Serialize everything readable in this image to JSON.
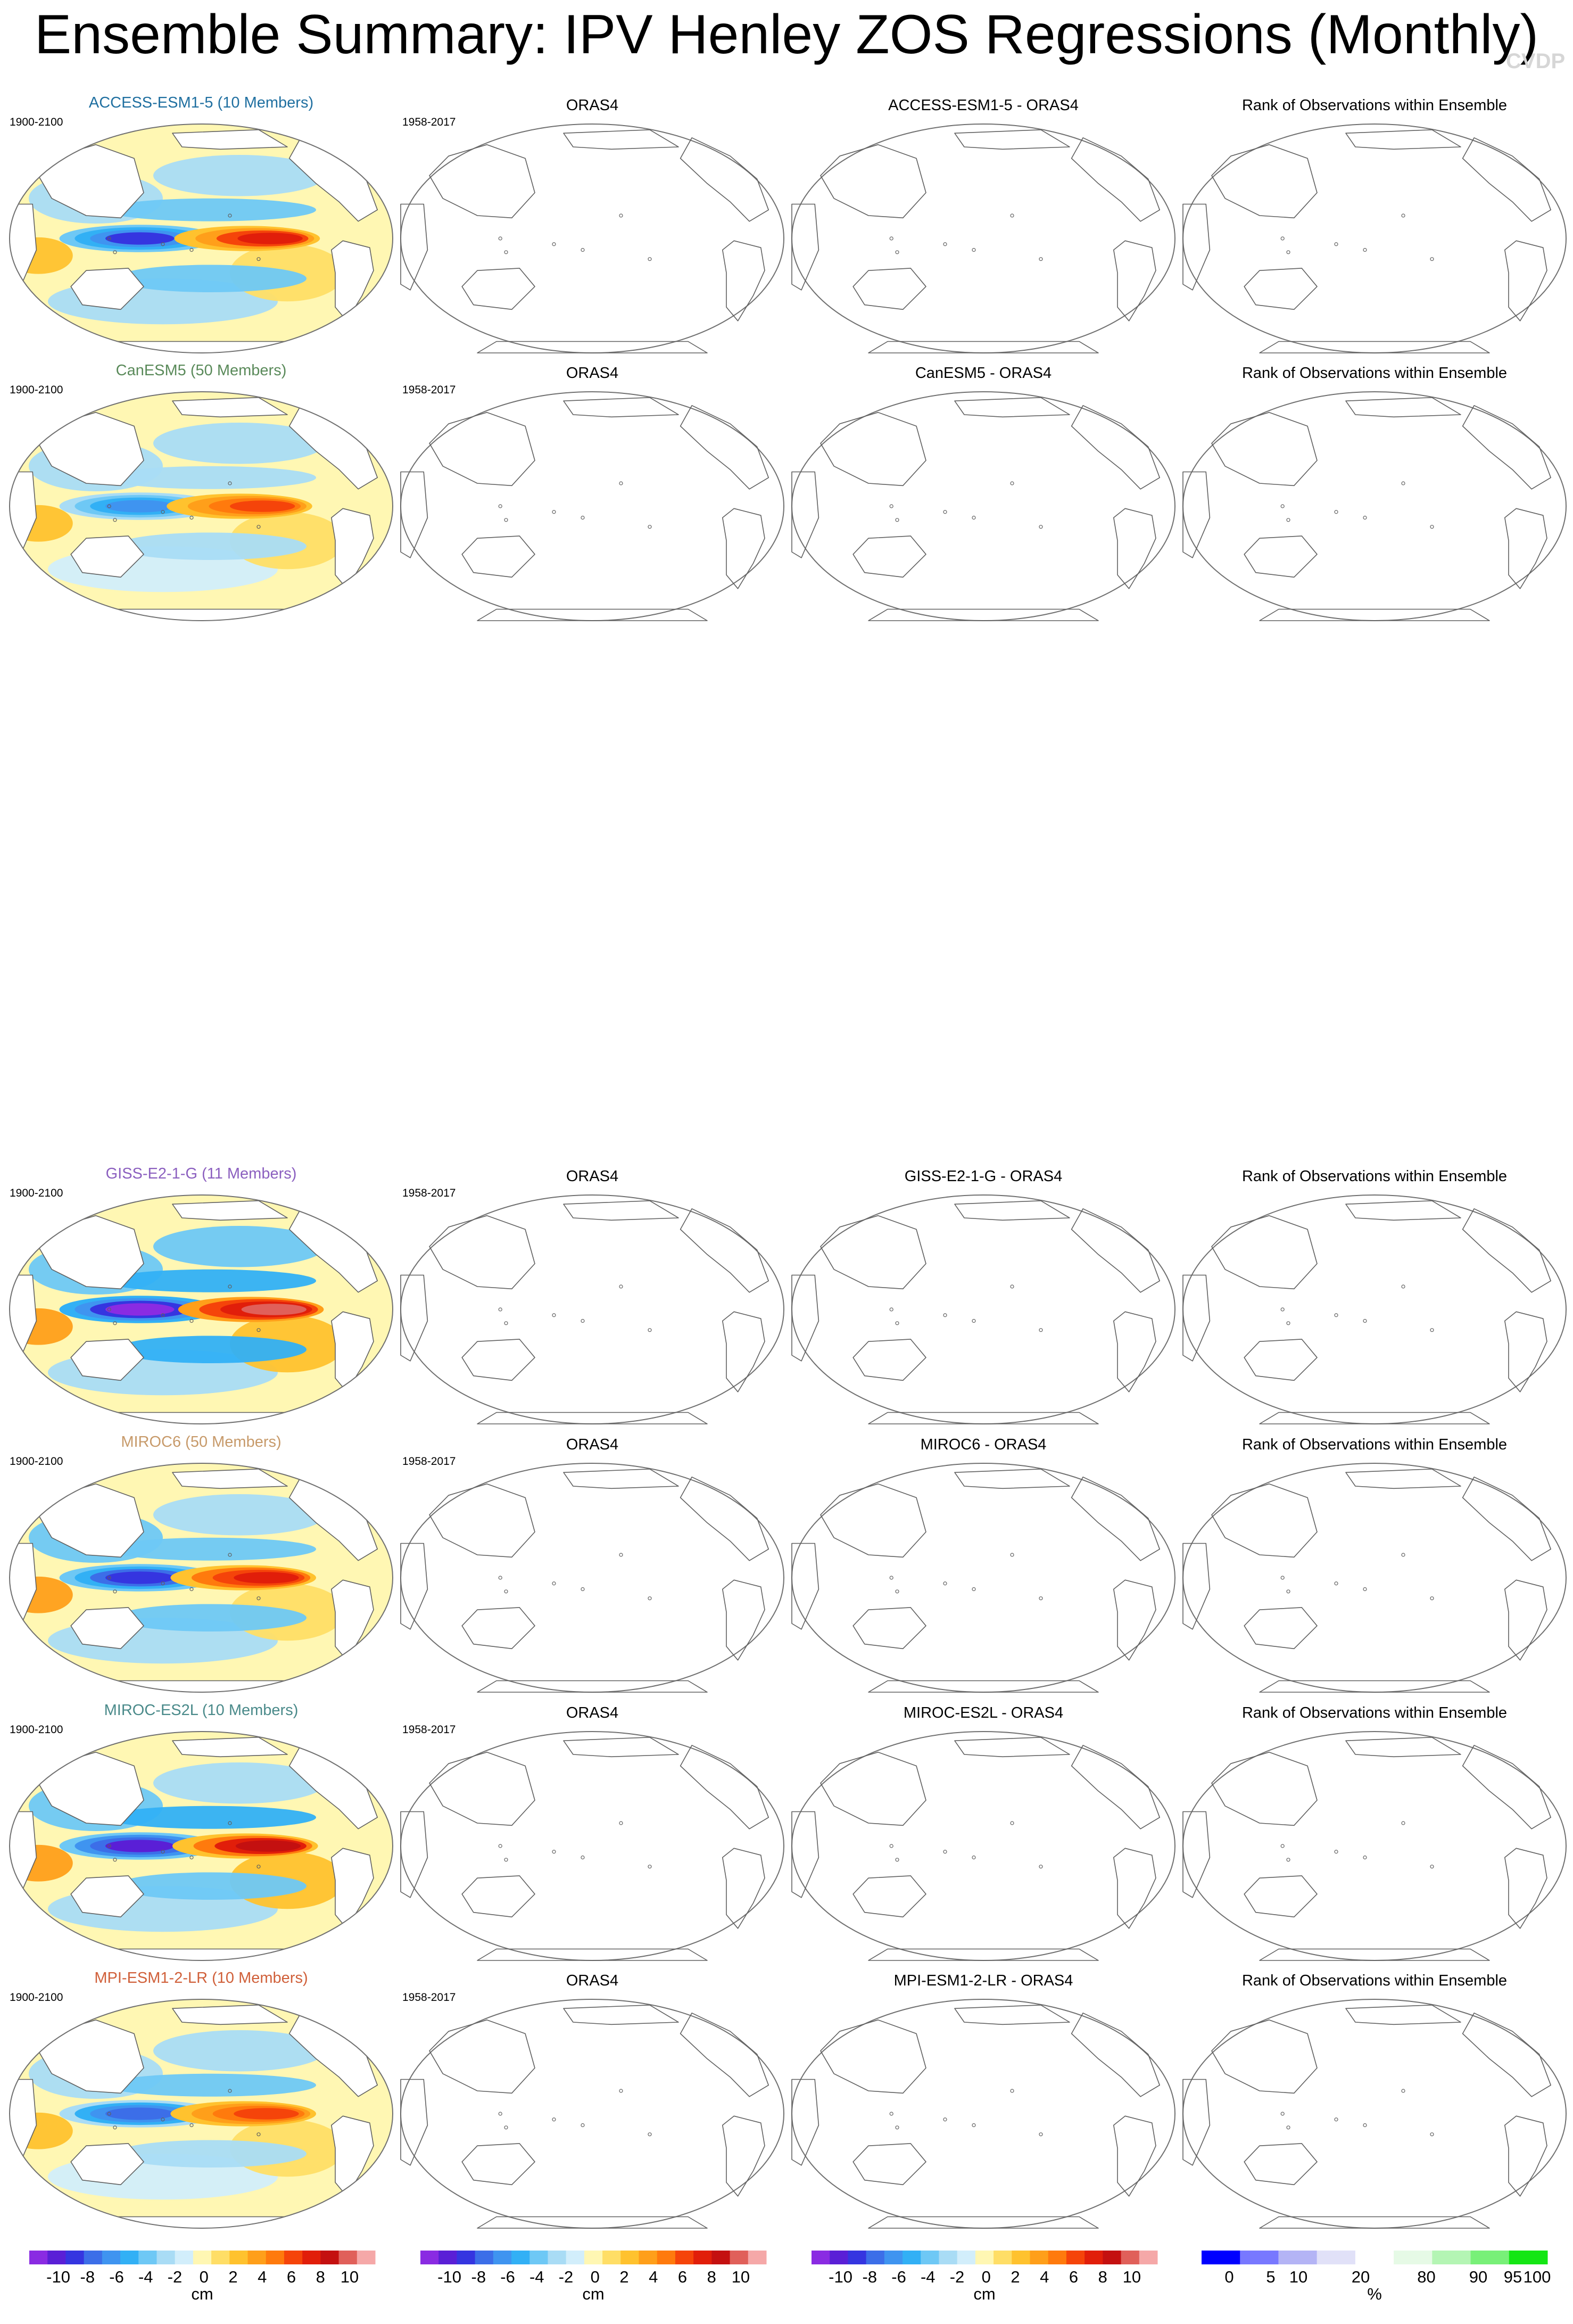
{
  "page": {
    "title": "Ensemble Summary: IPV Henley ZOS Regressions (Monthly)",
    "watermark": "CVDP"
  },
  "chart_data": {
    "type": "map-panels",
    "title": "Ensemble Summary: IPV Henley ZOS Regressions (Monthly)",
    "units": "cm",
    "observation_label": "ORAS4",
    "observation_period": "1958-2017",
    "rank_label": "Rank of Observations within Ensemble",
    "rows": [
      {
        "model": "ACCESS-ESM1-5",
        "title": "ACCESS-ESM1-5 (10 Members)",
        "period": "1900-2100",
        "diff": "ACCESS-ESM1-5 - ORAS4",
        "color": "#1f6fa0",
        "strength": 0.75,
        "centroid": 0.64
      },
      {
        "model": "CanESM5",
        "title": "CanESM5 (50 Members)",
        "period": "1900-2100",
        "diff": "CanESM5 - ORAS4",
        "color": "#5a8a5a",
        "strength": 0.6,
        "centroid": 0.6
      },
      {
        "model": "GISS-E2-1-G",
        "title": "GISS-E2-1-G (11 Members)",
        "period": "1900-2100",
        "diff": "GISS-E2-1-G - ORAS4",
        "color": "#8b5fbf",
        "strength": 1.0,
        "centroid": 0.66
      },
      {
        "model": "MIROC6",
        "title": "MIROC6 (50 Members)",
        "period": "1900-2100",
        "diff": "MIROC6 - ORAS4",
        "color": "#c79a6a",
        "strength": 0.8,
        "centroid": 0.62
      },
      {
        "model": "MIROC-ES2L",
        "title": "MIROC-ES2L (10 Members)",
        "period": "1900-2100",
        "diff": "MIROC-ES2L - ORAS4",
        "color": "#4a8a8a",
        "strength": 0.9,
        "centroid": 0.63
      },
      {
        "model": "MPI-ESM1-2-LR",
        "title": "MPI-ESM1-2-LR (10 Members)",
        "period": "1900-2100",
        "diff": "MPI-ESM1-2-LR - ORAS4",
        "color": "#d0603a",
        "strength": 0.65,
        "centroid": 0.62
      }
    ],
    "colorbar_regression": {
      "label": "cm",
      "ticks": [
        "-10",
        "-8",
        "-6",
        "-4",
        "-2",
        "0",
        "2",
        "4",
        "6",
        "8",
        "10"
      ],
      "colors": [
        "#8a2be2",
        "#5a1fd6",
        "#3535e0",
        "#3c6ee8",
        "#3f94f0",
        "#32b0f5",
        "#6ec8f5",
        "#a9dcf5",
        "#d2eefb",
        "#fff7b3",
        "#ffde66",
        "#ffc22e",
        "#ff9f1a",
        "#ff7a0d",
        "#f5440a",
        "#e11e0a",
        "#c41010",
        "#e0605a",
        "#f5a8a8"
      ]
    },
    "colorbar_rank": {
      "label": "%",
      "ticks": [
        "0",
        "5",
        "10",
        "20",
        "80",
        "90",
        "95",
        "100"
      ],
      "colors": [
        "#0000ff",
        "#7878ff",
        "#b4b4f5",
        "#e1e1f8",
        "#ffffff",
        "#e6fae6",
        "#b4f5b4",
        "#78f078",
        "#14e614"
      ]
    }
  }
}
